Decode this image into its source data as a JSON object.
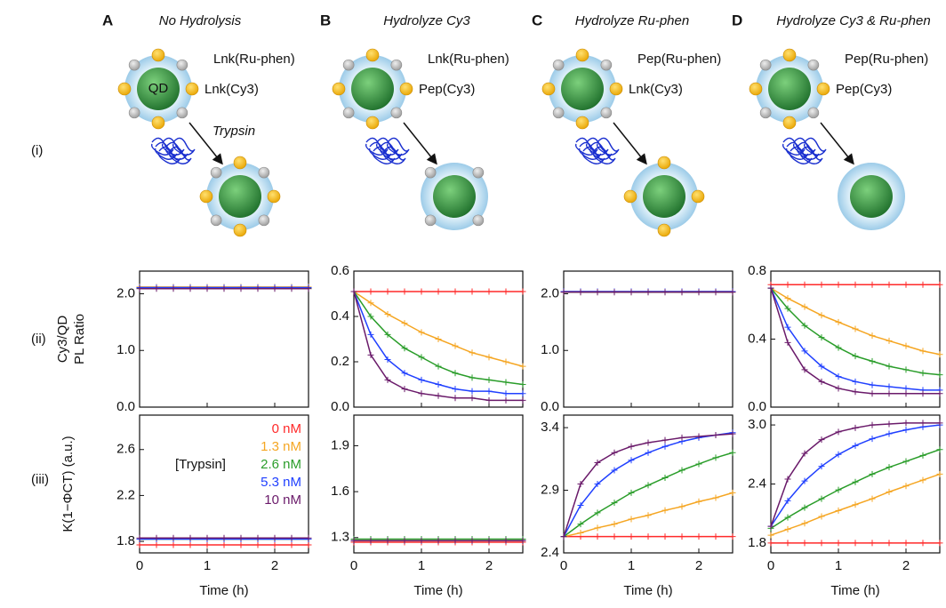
{
  "figure": {
    "row_labels": [
      "(i)",
      "(ii)",
      "(iii)"
    ],
    "qd_label": "QD",
    "enzyme_label": "Trypsin",
    "panels": [
      {
        "letter": "A",
        "title": "No Hydrolysis",
        "labels": [
          "Lnk(Ru-phen)",
          "Lnk(Cy3)"
        ]
      },
      {
        "letter": "B",
        "title": "Hydrolyze Cy3",
        "labels": [
          "Lnk(Ru-phen)",
          "Pep(Cy3)"
        ]
      },
      {
        "letter": "C",
        "title": "Hydrolyze Ru-phen",
        "labels": [
          "Pep(Ru-phen)",
          "Lnk(Cy3)"
        ]
      },
      {
        "letter": "D",
        "title": "Hydrolyze Cy3 & Ru-phen",
        "labels": [
          "Pep(Ru-phen)",
          "Pep(Cy3)"
        ]
      }
    ]
  },
  "chart_data": [
    {
      "type": "line",
      "ylabel": [
        "Cy3/QD",
        "PL Ratio"
      ],
      "x": [
        0,
        0.25,
        0.5,
        0.75,
        1,
        1.25,
        1.5,
        1.75,
        2,
        2.25,
        2.5
      ],
      "xlim": [
        0,
        2.5
      ],
      "xticks": [
        0,
        1,
        2
      ],
      "ylim": [
        0,
        2.4
      ],
      "yticks": [
        {
          "value": 0,
          "label": "0.0"
        },
        {
          "value": 1,
          "label": "1.0"
        },
        {
          "value": 2,
          "label": "2.0"
        }
      ],
      "series": [
        {
          "color": "#ff2a2a",
          "values": [
            2.1,
            2.1,
            2.1,
            2.1,
            2.1,
            2.1,
            2.1,
            2.1,
            2.1,
            2.1,
            2.1
          ]
        },
        {
          "color": "#f5a623",
          "values": [
            2.12,
            2.12,
            2.12,
            2.12,
            2.12,
            2.12,
            2.12,
            2.12,
            2.12,
            2.12,
            2.12
          ]
        },
        {
          "color": "#2a9d2a",
          "values": [
            2.1,
            2.1,
            2.1,
            2.1,
            2.1,
            2.1,
            2.1,
            2.1,
            2.1,
            2.1,
            2.1
          ]
        },
        {
          "color": "#2040ff",
          "values": [
            2.11,
            2.11,
            2.11,
            2.11,
            2.11,
            2.11,
            2.11,
            2.11,
            2.11,
            2.11,
            2.11
          ]
        },
        {
          "color": "#6a1a6a",
          "values": [
            2.09,
            2.09,
            2.09,
            2.09,
            2.09,
            2.09,
            2.09,
            2.09,
            2.09,
            2.09,
            2.09
          ]
        }
      ]
    },
    {
      "type": "line",
      "ylabel": "K(1−ΦCT) (a.u.)",
      "xlabel": "Time (h)",
      "legend_title": "[Trypsin]",
      "x": [
        0,
        0.25,
        0.5,
        0.75,
        1,
        1.25,
        1.5,
        1.75,
        2,
        2.25,
        2.5
      ],
      "xlim": [
        0,
        2.5
      ],
      "xticks": [
        0,
        1,
        2
      ],
      "ylim": [
        1.7,
        2.9
      ],
      "yticks": [
        1.8,
        2.2,
        2.6
      ],
      "series": [
        {
          "name": "0 nM",
          "color": "#ff2a2a",
          "values": [
            1.77,
            1.77,
            1.77,
            1.77,
            1.77,
            1.77,
            1.77,
            1.77,
            1.77,
            1.77,
            1.77
          ]
        },
        {
          "name": "1.3 nM",
          "color": "#f5a623",
          "values": [
            1.82,
            1.82,
            1.82,
            1.82,
            1.82,
            1.82,
            1.82,
            1.82,
            1.82,
            1.82,
            1.82
          ]
        },
        {
          "name": "2.6 nM",
          "color": "#2a9d2a",
          "values": [
            1.82,
            1.82,
            1.82,
            1.82,
            1.82,
            1.82,
            1.82,
            1.82,
            1.82,
            1.82,
            1.82
          ]
        },
        {
          "name": "5.3 nM",
          "color": "#2040ff",
          "values": [
            1.82,
            1.82,
            1.82,
            1.82,
            1.82,
            1.82,
            1.82,
            1.82,
            1.82,
            1.82,
            1.82
          ]
        },
        {
          "name": "10 nM",
          "color": "#6a1a6a",
          "values": [
            1.83,
            1.83,
            1.83,
            1.83,
            1.83,
            1.83,
            1.83,
            1.83,
            1.83,
            1.83,
            1.83
          ]
        }
      ]
    },
    {
      "type": "line",
      "x": [
        0,
        0.25,
        0.5,
        0.75,
        1,
        1.25,
        1.5,
        1.75,
        2,
        2.25,
        2.5
      ],
      "xlim": [
        0,
        2.5
      ],
      "xticks": [
        0,
        1,
        2
      ],
      "ylim": [
        0,
        0.6
      ],
      "yticks": [
        {
          "value": 0,
          "label": "0.0"
        },
        0.2,
        0.4,
        0.6
      ],
      "series": [
        {
          "color": "#ff2a2a",
          "values": [
            0.51,
            0.51,
            0.51,
            0.51,
            0.51,
            0.51,
            0.51,
            0.51,
            0.51,
            0.51,
            0.51
          ]
        },
        {
          "color": "#f5a623",
          "values": [
            0.51,
            0.46,
            0.41,
            0.37,
            0.33,
            0.3,
            0.27,
            0.24,
            0.22,
            0.2,
            0.18
          ]
        },
        {
          "color": "#2a9d2a",
          "values": [
            0.51,
            0.4,
            0.32,
            0.26,
            0.22,
            0.18,
            0.15,
            0.13,
            0.12,
            0.11,
            0.1
          ]
        },
        {
          "color": "#2040ff",
          "values": [
            0.51,
            0.32,
            0.21,
            0.15,
            0.12,
            0.1,
            0.08,
            0.07,
            0.07,
            0.06,
            0.06
          ]
        },
        {
          "color": "#6a1a6a",
          "values": [
            0.51,
            0.23,
            0.12,
            0.08,
            0.06,
            0.05,
            0.04,
            0.04,
            0.03,
            0.03,
            0.03
          ]
        }
      ]
    },
    {
      "type": "line",
      "xlabel": "Time (h)",
      "x": [
        0,
        0.25,
        0.5,
        0.75,
        1,
        1.25,
        1.5,
        1.75,
        2,
        2.25,
        2.5
      ],
      "xlim": [
        0,
        2.5
      ],
      "xticks": [
        0,
        1,
        2
      ],
      "ylim": [
        1.2,
        2.1
      ],
      "yticks": [
        1.3,
        1.6,
        1.9
      ],
      "series": [
        {
          "color": "#ff2a2a",
          "values": [
            1.27,
            1.27,
            1.27,
            1.27,
            1.27,
            1.27,
            1.27,
            1.27,
            1.27,
            1.27,
            1.27
          ]
        },
        {
          "color": "#f5a623",
          "values": [
            1.28,
            1.28,
            1.28,
            1.28,
            1.28,
            1.28,
            1.28,
            1.28,
            1.28,
            1.28,
            1.28
          ]
        },
        {
          "color": "#2a9d2a",
          "values": [
            1.29,
            1.29,
            1.29,
            1.29,
            1.29,
            1.29,
            1.29,
            1.29,
            1.29,
            1.29,
            1.29
          ]
        },
        {
          "color": "#2040ff",
          "values": [
            1.28,
            1.28,
            1.28,
            1.28,
            1.28,
            1.28,
            1.28,
            1.28,
            1.28,
            1.28,
            1.28
          ]
        },
        {
          "color": "#6a1a6a",
          "values": [
            1.28,
            1.28,
            1.28,
            1.28,
            1.28,
            1.28,
            1.28,
            1.28,
            1.28,
            1.28,
            1.28
          ]
        }
      ]
    },
    {
      "type": "line",
      "x": [
        0,
        0.25,
        0.5,
        0.75,
        1,
        1.25,
        1.5,
        1.75,
        2,
        2.25,
        2.5
      ],
      "xlim": [
        0,
        2.5
      ],
      "xticks": [
        0,
        1,
        2
      ],
      "ylim": [
        0,
        2.4
      ],
      "yticks": [
        {
          "value": 0,
          "label": "0.0"
        },
        {
          "value": 1,
          "label": "1.0"
        },
        {
          "value": 2,
          "label": "2.0"
        }
      ],
      "series": [
        {
          "color": "#ff2a2a",
          "values": [
            2.03,
            2.03,
            2.03,
            2.03,
            2.03,
            2.03,
            2.03,
            2.03,
            2.03,
            2.03,
            2.03
          ]
        },
        {
          "color": "#f5a623",
          "values": [
            2.04,
            2.04,
            2.04,
            2.04,
            2.04,
            2.04,
            2.04,
            2.04,
            2.04,
            2.04,
            2.04
          ]
        },
        {
          "color": "#2a9d2a",
          "values": [
            2.03,
            2.03,
            2.03,
            2.03,
            2.03,
            2.03,
            2.03,
            2.03,
            2.03,
            2.03,
            2.03
          ]
        },
        {
          "color": "#2040ff",
          "values": [
            2.04,
            2.04,
            2.04,
            2.04,
            2.04,
            2.04,
            2.04,
            2.04,
            2.04,
            2.04,
            2.04
          ]
        },
        {
          "color": "#6a1a6a",
          "values": [
            2.03,
            2.03,
            2.03,
            2.03,
            2.03,
            2.03,
            2.03,
            2.03,
            2.03,
            2.03,
            2.03
          ]
        }
      ]
    },
    {
      "type": "line",
      "xlabel": "Time (h)",
      "x": [
        0,
        0.25,
        0.5,
        0.75,
        1,
        1.25,
        1.5,
        1.75,
        2,
        2.25,
        2.5
      ],
      "xlim": [
        0,
        2.5
      ],
      "xticks": [
        0,
        1,
        2
      ],
      "ylim": [
        2.4,
        3.5
      ],
      "yticks": [
        2.4,
        2.9,
        3.4
      ],
      "series": [
        {
          "color": "#ff2a2a",
          "values": [
            2.53,
            2.53,
            2.53,
            2.53,
            2.53,
            2.53,
            2.53,
            2.53,
            2.53,
            2.53,
            2.53
          ]
        },
        {
          "color": "#f5a623",
          "values": [
            2.53,
            2.56,
            2.6,
            2.63,
            2.67,
            2.7,
            2.74,
            2.77,
            2.81,
            2.84,
            2.88
          ]
        },
        {
          "color": "#2a9d2a",
          "values": [
            2.53,
            2.63,
            2.72,
            2.8,
            2.88,
            2.94,
            3.0,
            3.06,
            3.11,
            3.16,
            3.2
          ]
        },
        {
          "color": "#2040ff",
          "values": [
            2.53,
            2.78,
            2.95,
            3.06,
            3.14,
            3.2,
            3.25,
            3.29,
            3.32,
            3.34,
            3.36
          ]
        },
        {
          "color": "#6a1a6a",
          "values": [
            2.53,
            2.95,
            3.12,
            3.2,
            3.25,
            3.28,
            3.3,
            3.32,
            3.33,
            3.34,
            3.35
          ]
        }
      ]
    },
    {
      "type": "line",
      "x": [
        0,
        0.25,
        0.5,
        0.75,
        1,
        1.25,
        1.5,
        1.75,
        2,
        2.25,
        2.5
      ],
      "xlim": [
        0,
        2.5
      ],
      "xticks": [
        0,
        1,
        2
      ],
      "ylim": [
        0,
        0.8
      ],
      "yticks": [
        {
          "value": 0,
          "label": "0.0"
        },
        0.4,
        0.8
      ],
      "series": [
        {
          "color": "#ff2a2a",
          "values": [
            0.72,
            0.72,
            0.72,
            0.72,
            0.72,
            0.72,
            0.72,
            0.72,
            0.72,
            0.72,
            0.72
          ]
        },
        {
          "color": "#f5a623",
          "values": [
            0.7,
            0.64,
            0.59,
            0.54,
            0.5,
            0.46,
            0.42,
            0.39,
            0.36,
            0.33,
            0.31
          ]
        },
        {
          "color": "#2a9d2a",
          "values": [
            0.7,
            0.58,
            0.48,
            0.41,
            0.35,
            0.3,
            0.27,
            0.24,
            0.22,
            0.2,
            0.19
          ]
        },
        {
          "color": "#2040ff",
          "values": [
            0.7,
            0.47,
            0.33,
            0.24,
            0.18,
            0.15,
            0.13,
            0.12,
            0.11,
            0.1,
            0.1
          ]
        },
        {
          "color": "#6a1a6a",
          "values": [
            0.7,
            0.38,
            0.22,
            0.15,
            0.11,
            0.09,
            0.08,
            0.08,
            0.08,
            0.08,
            0.08
          ]
        }
      ]
    },
    {
      "type": "line",
      "xlabel": "Time (h)",
      "x": [
        0,
        0.25,
        0.5,
        0.75,
        1,
        1.25,
        1.5,
        1.75,
        2,
        2.25,
        2.5
      ],
      "xlim": [
        0,
        2.5
      ],
      "xticks": [
        0,
        1,
        2
      ],
      "ylim": [
        1.7,
        3.1
      ],
      "yticks": [
        1.8,
        2.4,
        {
          "value": 3,
          "label": "3.0"
        }
      ],
      "series": [
        {
          "color": "#ff2a2a",
          "values": [
            1.8,
            1.8,
            1.8,
            1.8,
            1.8,
            1.8,
            1.8,
            1.8,
            1.8,
            1.8,
            1.8
          ]
        },
        {
          "color": "#f5a623",
          "values": [
            1.88,
            1.94,
            2.0,
            2.07,
            2.13,
            2.19,
            2.25,
            2.32,
            2.38,
            2.44,
            2.5
          ]
        },
        {
          "color": "#2a9d2a",
          "values": [
            1.95,
            2.06,
            2.16,
            2.25,
            2.34,
            2.42,
            2.5,
            2.57,
            2.63,
            2.69,
            2.75
          ]
        },
        {
          "color": "#2040ff",
          "values": [
            1.97,
            2.23,
            2.43,
            2.58,
            2.7,
            2.79,
            2.86,
            2.91,
            2.95,
            2.98,
            3.0
          ]
        },
        {
          "color": "#6a1a6a",
          "values": [
            1.97,
            2.45,
            2.71,
            2.85,
            2.93,
            2.97,
            3.0,
            3.01,
            3.02,
            3.02,
            3.02
          ]
        }
      ]
    }
  ]
}
